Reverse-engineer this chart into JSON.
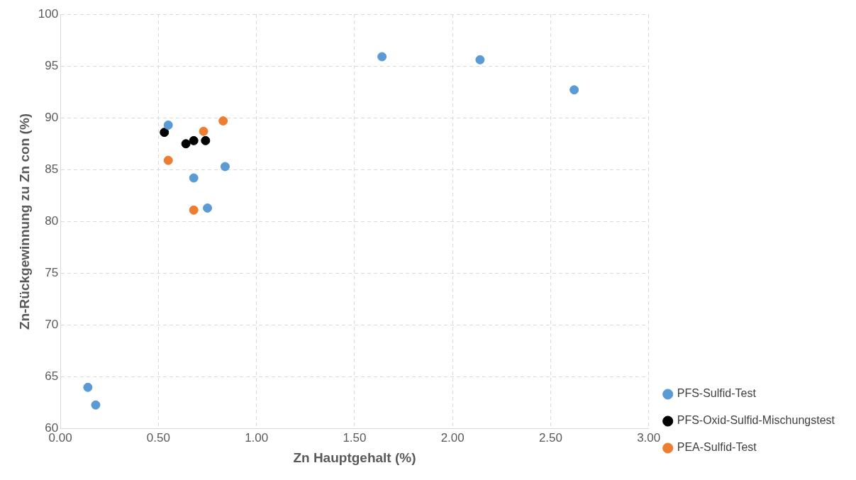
{
  "chart_data": {
    "type": "scatter",
    "xlabel": "Zn Hauptgehalt (%)",
    "ylabel": "Zn-Rückgewinnung zu Zn con (%)",
    "xlim": [
      0,
      3
    ],
    "xticks": [
      {
        "value": 0,
        "label": "0.00"
      },
      {
        "value": 0.5,
        "label": "0.50"
      },
      {
        "value": 1,
        "label": "1.00"
      },
      {
        "value": 1.5,
        "label": "1.50"
      },
      {
        "value": 2,
        "label": "2.00"
      },
      {
        "value": 2.5,
        "label": "2.50"
      },
      {
        "value": 3,
        "label": "3.00"
      }
    ],
    "ylim": [
      60,
      100
    ],
    "yticks": [
      60,
      65,
      70,
      75,
      80,
      85,
      90,
      95,
      100
    ],
    "grid": true,
    "legend": "bottom right",
    "marker": "circle",
    "series": [
      {
        "name": "PFS-Sulfid-Test",
        "color": "#5b9bd5",
        "x": [
          0.14,
          0.18,
          0.55,
          0.68,
          0.75,
          0.84,
          1.64,
          2.14,
          2.62
        ],
        "values": [
          64.0,
          62.3,
          89.3,
          84.2,
          81.3,
          85.3,
          95.9,
          95.6,
          92.7
        ]
      },
      {
        "name": "PFS-Oxid-Sulfid-Mischungstest",
        "color": "#000000",
        "x": [
          0.53,
          0.64,
          0.68,
          0.74
        ],
        "values": [
          88.6,
          87.5,
          87.8,
          87.8
        ]
      },
      {
        "name": "PEA-Sulfid-Test",
        "color": "#ed7d31",
        "x": [
          0.55,
          0.68,
          0.73,
          0.83
        ],
        "values": [
          85.9,
          81.1,
          88.7,
          89.7
        ]
      }
    ]
  }
}
